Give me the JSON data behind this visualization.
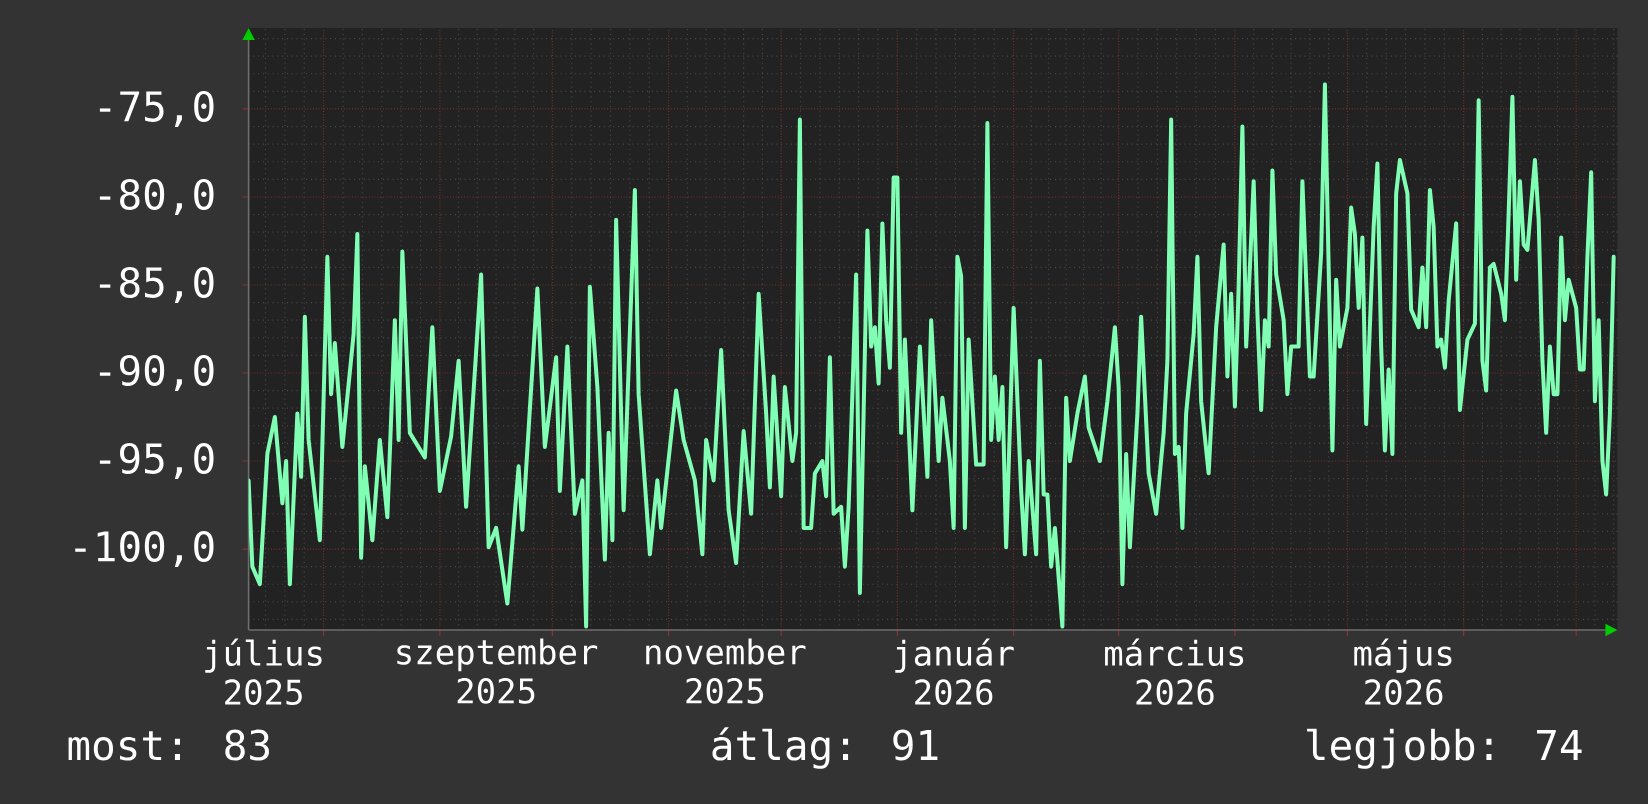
{
  "chart_data": {
    "type": "line",
    "color": "#80ffb4",
    "x": [
      "2025-07-12",
      "2025-07-13",
      "2025-07-15",
      "2025-07-17",
      "2025-07-19",
      "2025-07-21",
      "2025-07-22",
      "2025-07-23",
      "2025-07-25",
      "2025-07-26",
      "2025-07-27",
      "2025-07-28",
      "2025-07-31",
      "2025-08-02",
      "2025-08-03",
      "2025-08-04",
      "2025-08-06",
      "2025-08-09",
      "2025-08-10",
      "2025-08-11",
      "2025-08-12",
      "2025-08-14",
      "2025-08-16",
      "2025-08-18",
      "2025-08-20",
      "2025-08-21",
      "2025-08-22",
      "2025-08-24",
      "2025-08-28",
      "2025-08-30",
      "2025-09-01",
      "2025-09-04",
      "2025-09-06",
      "2025-09-08",
      "2025-09-12",
      "2025-09-14",
      "2025-09-16",
      "2025-09-19",
      "2025-09-22",
      "2025-09-23",
      "2025-09-27",
      "2025-09-29",
      "2025-10-02",
      "2025-10-03",
      "2025-10-05",
      "2025-10-07",
      "2025-10-09",
      "2025-10-10",
      "2025-10-11",
      "2025-10-13",
      "2025-10-15",
      "2025-10-16",
      "2025-10-17",
      "2025-10-18",
      "2025-10-20",
      "2025-10-23",
      "2025-10-24",
      "2025-10-27",
      "2025-10-29",
      "2025-10-30",
      "2025-11-03",
      "2025-11-05",
      "2025-11-08",
      "2025-11-10",
      "2025-11-11",
      "2025-11-13",
      "2025-11-15",
      "2025-11-17",
      "2025-11-19",
      "2025-11-21",
      "2025-11-23",
      "2025-11-25",
      "2025-11-27",
      "2025-11-28",
      "2025-11-29",
      "2025-12-01",
      "2025-12-02",
      "2025-12-04",
      "2025-12-05",
      "2025-12-06",
      "2025-12-07",
      "2025-12-09",
      "2025-12-10",
      "2025-12-12",
      "2025-12-13",
      "2025-12-14",
      "2025-12-15",
      "2025-12-17",
      "2025-12-18",
      "2025-12-19",
      "2025-12-20",
      "2025-12-21",
      "2025-12-22",
      "2025-12-24",
      "2025-12-25",
      "2025-12-26",
      "2025-12-27",
      "2025-12-28",
      "2025-12-29",
      "2025-12-30",
      "2025-12-31",
      "2026-01-01",
      "2026-01-02",
      "2026-01-03",
      "2026-01-05",
      "2026-01-07",
      "2026-01-09",
      "2026-01-10",
      "2026-01-12",
      "2026-01-13",
      "2026-01-15",
      "2026-01-16",
      "2026-01-17",
      "2026-01-18",
      "2026-01-19",
      "2026-01-20",
      "2026-01-22",
      "2026-01-24",
      "2026-01-25",
      "2026-01-26",
      "2026-01-27",
      "2026-01-28",
      "2026-01-29",
      "2026-01-30",
      "2026-02-01",
      "2026-02-03",
      "2026-02-04",
      "2026-02-05",
      "2026-02-07",
      "2026-02-08",
      "2026-02-09",
      "2026-02-10",
      "2026-02-11",
      "2026-02-12",
      "2026-02-14",
      "2026-02-15",
      "2026-02-16",
      "2026-02-18",
      "2026-02-20",
      "2026-02-21",
      "2026-02-24",
      "2026-02-26",
      "2026-02-28",
      "2026-03-01",
      "2026-03-02",
      "2026-03-03",
      "2026-03-04",
      "2026-03-06",
      "2026-03-07",
      "2026-03-09",
      "2026-03-11",
      "2026-03-13",
      "2026-03-14",
      "2026-03-15",
      "2026-03-16",
      "2026-03-17",
      "2026-03-18",
      "2026-03-19",
      "2026-03-21",
      "2026-03-22",
      "2026-03-23",
      "2026-03-25",
      "2026-03-27",
      "2026-03-29",
      "2026-03-30",
      "2026-03-31",
      "2026-04-01",
      "2026-04-02",
      "2026-04-03",
      "2026-04-04",
      "2026-04-05",
      "2026-04-06",
      "2026-04-07",
      "2026-04-08",
      "2026-04-09",
      "2026-04-10",
      "2026-04-11",
      "2026-04-12",
      "2026-04-14",
      "2026-04-15",
      "2026-04-16",
      "2026-04-18",
      "2026-04-19",
      "2026-04-20",
      "2026-04-21",
      "2026-04-22",
      "2026-04-24",
      "2026-04-25",
      "2026-04-26",
      "2026-04-27",
      "2026-04-28",
      "2026-04-29",
      "2026-05-01",
      "2026-05-02",
      "2026-05-03",
      "2026-05-04",
      "2026-05-05",
      "2026-05-06",
      "2026-05-08",
      "2026-05-09",
      "2026-05-10",
      "2026-05-11",
      "2026-05-12",
      "2026-05-13",
      "2026-05-14",
      "2026-05-15",
      "2026-05-17",
      "2026-05-18",
      "2026-05-20",
      "2026-05-21",
      "2026-05-22",
      "2026-05-23",
      "2026-05-24",
      "2026-05-25",
      "2026-05-26",
      "2026-05-27",
      "2026-05-28",
      "2026-05-30",
      "2026-05-31",
      "2026-06-02",
      "2026-06-04",
      "2026-06-05",
      "2026-06-06",
      "2026-06-07",
      "2026-06-08",
      "2026-06-09",
      "2026-06-11",
      "2026-06-12",
      "2026-06-13",
      "2026-06-14",
      "2026-06-15",
      "2026-06-16",
      "2026-06-17",
      "2026-06-18",
      "2026-06-20",
      "2026-06-21",
      "2026-06-22",
      "2026-06-23",
      "2026-06-24",
      "2026-06-25",
      "2026-06-26",
      "2026-06-27",
      "2026-06-28",
      "2026-06-29",
      "2026-07-01",
      "2026-07-02",
      "2026-07-03",
      "2026-07-04",
      "2026-07-05",
      "2026-07-06",
      "2026-07-07",
      "2026-07-08",
      "2026-07-09",
      "2026-07-10",
      "2026-07-11"
    ],
    "values": [
      -96.1,
      -101.0,
      -102.0,
      -94.6,
      -92.5,
      -97.4,
      -95.0,
      -102.0,
      -92.3,
      -95.9,
      -86.8,
      -93.8,
      -99.5,
      -83.4,
      -91.2,
      -88.3,
      -94.2,
      -87.8,
      -82.1,
      -100.5,
      -95.3,
      -99.5,
      -93.8,
      -98.2,
      -87.0,
      -93.8,
      -83.1,
      -93.4,
      -94.8,
      -87.4,
      -96.7,
      -93.6,
      -89.3,
      -97.6,
      -84.4,
      -99.9,
      -98.8,
      -103.1,
      -95.3,
      -98.9,
      -85.2,
      -94.2,
      -89.1,
      -96.7,
      -88.5,
      -98.0,
      -96.1,
      -104.4,
      -85.1,
      -90.8,
      -100.6,
      -93.4,
      -99.5,
      -81.3,
      -97.8,
      -79.6,
      -91.2,
      -100.3,
      -96.1,
      -98.8,
      -91.0,
      -93.8,
      -96.1,
      -100.3,
      -93.8,
      -96.1,
      -88.7,
      -97.8,
      -100.8,
      -93.3,
      -98.0,
      -85.5,
      -92.3,
      -96.5,
      -90.2,
      -97.0,
      -90.8,
      -95.0,
      -93.4,
      -75.6,
      -98.8,
      -98.8,
      -95.7,
      -95.0,
      -97.0,
      -89.1,
      -98.0,
      -97.6,
      -101.0,
      -97.6,
      -91.2,
      -84.4,
      -102.5,
      -81.9,
      -88.5,
      -87.4,
      -90.6,
      -81.5,
      -87.0,
      -89.7,
      -78.9,
      -78.9,
      -93.4,
      -88.1,
      -97.8,
      -88.5,
      -95.9,
      -87.0,
      -95.0,
      -91.4,
      -95.0,
      -98.8,
      -83.4,
      -84.5,
      -98.8,
      -88.1,
      -95.2,
      -95.2,
      -75.8,
      -93.8,
      -90.2,
      -93.8,
      -90.8,
      -99.9,
      -86.3,
      -96.7,
      -100.3,
      -95.0,
      -100.3,
      -89.3,
      -96.9,
      -96.9,
      -101.0,
      -98.8,
      -104.4,
      -91.4,
      -95.0,
      -92.3,
      -90.2,
      -93.1,
      -95.0,
      -91.6,
      -87.4,
      -90.8,
      -102.0,
      -94.6,
      -99.9,
      -92.3,
      -86.8,
      -95.7,
      -98.0,
      -93.4,
      -89.3,
      -75.6,
      -94.6,
      -94.2,
      -98.8,
      -92.3,
      -87.8,
      -83.4,
      -91.6,
      -95.7,
      -87.4,
      -82.7,
      -90.2,
      -85.5,
      -91.9,
      -85.1,
      -76.0,
      -88.5,
      -84.0,
      -79.1,
      -86.6,
      -92.1,
      -87.0,
      -88.5,
      -78.5,
      -84.4,
      -87.0,
      -91.2,
      -88.5,
      -88.5,
      -79.1,
      -84.7,
      -90.2,
      -90.2,
      -83.2,
      -73.6,
      -84.0,
      -94.4,
      -84.7,
      -88.5,
      -86.3,
      -80.6,
      -82.1,
      -86.3,
      -82.3,
      -92.9,
      -81.7,
      -78.1,
      -88.5,
      -94.4,
      -89.8,
      -94.6,
      -79.8,
      -77.9,
      -79.8,
      -86.4,
      -87.4,
      -84.0,
      -87.4,
      -79.6,
      -81.7,
      -88.5,
      -88.1,
      -89.7,
      -85.9,
      -81.5,
      -92.1,
      -88.1,
      -87.2,
      -74.5,
      -89.3,
      -91.0,
      -84.0,
      -83.8,
      -85.5,
      -87.0,
      -80.9,
      -74.3,
      -84.7,
      -79.1,
      -82.7,
      -83.0,
      -77.9,
      -81.3,
      -89.3,
      -93.4,
      -88.5,
      -91.2,
      -91.2,
      -82.3,
      -87.0,
      -84.7,
      -86.3,
      -89.8,
      -89.8,
      -83.4,
      -78.6,
      -91.6,
      -87.0,
      -95.0,
      -96.9,
      -92.3,
      -83.4
    ],
    "xlim": [
      "2025-07-12",
      "2026-07-12"
    ],
    "xticks": [
      {
        "value": "2025-07-16",
        "label": "július 2025"
      },
      {
        "value": "2025-08-01",
        "label": null
      },
      {
        "value": "2025-09-01",
        "label": null
      },
      {
        "value": "2025-09-16",
        "label": "szeptember 2025"
      },
      {
        "value": "2025-10-01",
        "label": null
      },
      {
        "value": "2025-11-01",
        "label": null
      },
      {
        "value": "2025-11-16",
        "label": "november 2025"
      },
      {
        "value": "2025-12-01",
        "label": null
      },
      {
        "value": "2026-01-01",
        "label": null
      },
      {
        "value": "2026-01-16",
        "label": "január 2026"
      },
      {
        "value": "2026-02-01",
        "label": null
      },
      {
        "value": "2026-03-01",
        "label": null
      },
      {
        "value": "2026-03-16",
        "label": "március 2026"
      },
      {
        "value": "2026-04-01",
        "label": null
      },
      {
        "value": "2026-05-01",
        "label": null
      },
      {
        "value": "2026-05-16",
        "label": "május 2026"
      },
      {
        "value": "2026-06-01",
        "label": null
      },
      {
        "value": "2026-07-01",
        "label": null
      }
    ],
    "ylim": [
      -104.6,
      -70.4
    ],
    "yticks": [
      {
        "value": -100,
        "label": "-100,0"
      },
      {
        "value": -95,
        "label": "-95,0"
      },
      {
        "value": -90,
        "label": "-90,0"
      },
      {
        "value": -85,
        "label": "-85,0"
      },
      {
        "value": -80,
        "label": "-80,0"
      },
      {
        "value": -75,
        "label": "-75,0"
      }
    ],
    "grid": true,
    "annotations": [
      "most: 83",
      "átlag: 91",
      "legjobb: 74"
    ]
  }
}
